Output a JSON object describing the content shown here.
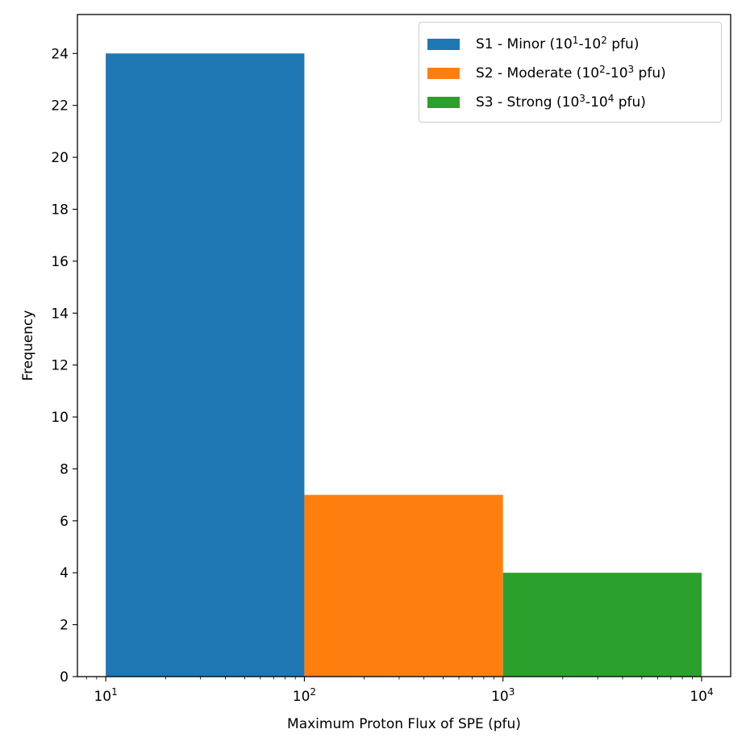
{
  "chart_data": {
    "type": "bar",
    "xlabel": "Maximum Proton Flux of SPE (pfu)",
    "ylabel": "Frequency",
    "xscale": "log",
    "xlim": [
      7.2,
      14000
    ],
    "ylim": [
      0,
      25.5
    ],
    "yticks": [
      0,
      2,
      4,
      6,
      8,
      10,
      12,
      14,
      16,
      18,
      20,
      22,
      24
    ],
    "xticks": [
      {
        "value": 10,
        "base": "10",
        "exp": "1"
      },
      {
        "value": 100,
        "base": "10",
        "exp": "2"
      },
      {
        "value": 1000,
        "base": "10",
        "exp": "3"
      },
      {
        "value": 10000,
        "base": "10",
        "exp": "4"
      }
    ],
    "grid": false,
    "legend_position": "top-right",
    "bins": [
      {
        "name": "S1 - Minor",
        "range_label": {
          "pre": " (",
          "a": "10",
          "a_exp": "1",
          "mid": "-",
          "b": "10",
          "b_exp": "2",
          "post": " pfu)"
        },
        "x_start": 10,
        "x_end": 100,
        "value": 24,
        "color": "#1f77b4"
      },
      {
        "name": "S2 - Moderate",
        "range_label": {
          "pre": " (",
          "a": "10",
          "a_exp": "2",
          "mid": "-",
          "b": "10",
          "b_exp": "3",
          "post": " pfu)"
        },
        "x_start": 100,
        "x_end": 1000,
        "value": 7,
        "color": "#ff7f0e"
      },
      {
        "name": "S3 - Strong",
        "range_label": {
          "pre": " (",
          "a": "10",
          "a_exp": "3",
          "mid": "-",
          "b": "10",
          "b_exp": "4",
          "post": " pfu)"
        },
        "x_start": 1000,
        "x_end": 10000,
        "value": 4,
        "color": "#2ca02c"
      }
    ]
  }
}
